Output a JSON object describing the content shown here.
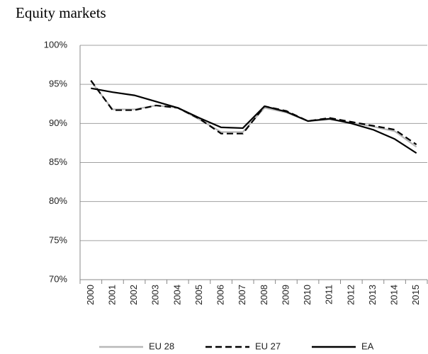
{
  "chart_data": {
    "type": "line",
    "title": "Equity markets",
    "categories": [
      "2000",
      "2001",
      "2002",
      "2003",
      "2004",
      "2005",
      "2006",
      "2007",
      "2008",
      "2009",
      "2010",
      "2011",
      "2012",
      "2013",
      "2014",
      "2015"
    ],
    "series": [
      {
        "name": "EU 28",
        "color": "#b8b8b8",
        "line_style": "solid",
        "values": [
          95.4,
          91.8,
          91.8,
          92.3,
          92.0,
          90.5,
          88.9,
          88.9,
          92.0,
          91.4,
          90.3,
          90.5,
          90.1,
          89.6,
          89.0,
          87.0
        ]
      },
      {
        "name": "EU 27",
        "color": "#000000",
        "line_style": "dashed",
        "values": [
          95.5,
          91.7,
          91.7,
          92.3,
          92.0,
          90.6,
          88.7,
          88.7,
          92.2,
          91.6,
          90.3,
          90.7,
          90.2,
          89.7,
          89.2,
          87.3
        ]
      },
      {
        "name": "EA",
        "color": "#000000",
        "line_style": "solid",
        "values": [
          94.5,
          94.0,
          93.6,
          92.8,
          92.0,
          90.7,
          89.5,
          89.4,
          92.2,
          91.5,
          90.3,
          90.6,
          90.0,
          89.2,
          88.0,
          86.2
        ]
      }
    ],
    "ylim": [
      70,
      100
    ],
    "yticks": [
      {
        "value": 70,
        "label": "70%"
      },
      {
        "value": 75,
        "label": "75%"
      },
      {
        "value": 80,
        "label": "80%"
      },
      {
        "value": 85,
        "label": "85%"
      },
      {
        "value": 90,
        "label": "90%"
      },
      {
        "value": 95,
        "label": "95%"
      },
      {
        "value": 100,
        "label": "100%"
      }
    ],
    "grid": true,
    "legend": "bottom"
  }
}
